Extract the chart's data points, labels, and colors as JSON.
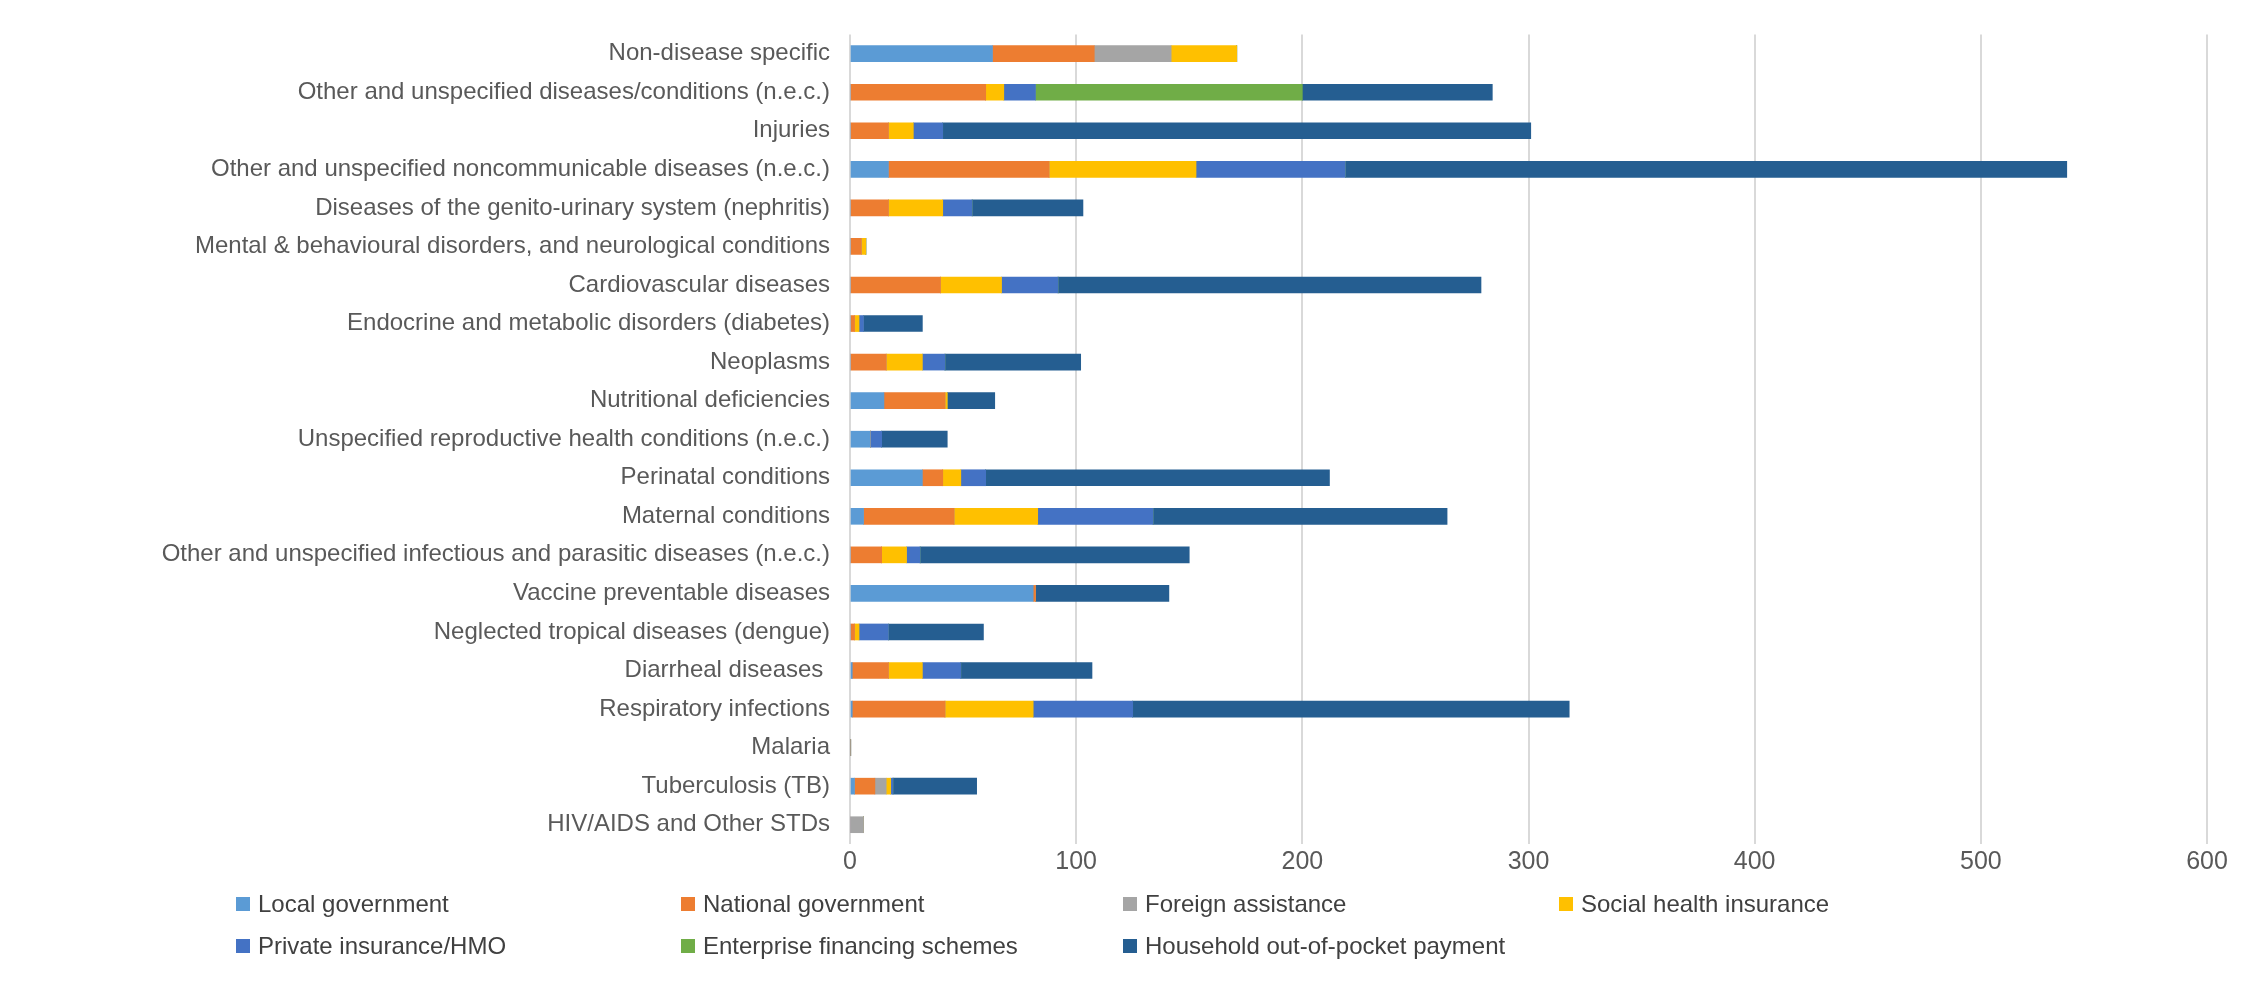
{
  "chart_data": {
    "type": "bar",
    "orientation": "horizontal",
    "stacked": true,
    "grid": "x",
    "legend": "bottom",
    "categories": [
      "Non-disease specific",
      "Other and unspecified diseases/conditions (n.e.c.)",
      "Injuries",
      "Other and unspecified noncommunicable diseases (n.e.c.)",
      "Diseases of the genito-urinary system (nephritis)",
      "Mental & behavioural disorders, and neurological conditions",
      "Cardiovascular diseases",
      "Endocrine and metabolic disorders (diabetes)",
      "Neoplasms",
      "Nutritional deficiencies",
      "Unspecified reproductive health conditions (n.e.c.)",
      "Perinatal conditions",
      "Maternal conditions",
      "Other and unspecified infectious and parasitic diseases (n.e.c.)",
      "Vaccine preventable diseases",
      "Neglected tropical diseases (dengue)",
      "Diarrheal diseases ",
      "Respiratory infections",
      "Malaria",
      "Tuberculosis (TB)",
      "HIV/AIDS and Other STDs"
    ],
    "xlim": [
      0,
      600
    ],
    "xticks": [
      0,
      100,
      200,
      300,
      400,
      500,
      600
    ],
    "series": [
      {
        "name": "Local government",
        "color": "#5b9bd5",
        "values": [
          63,
          0,
          0,
          17,
          0,
          0,
          0,
          0,
          0,
          15,
          9,
          32,
          6,
          0,
          81,
          0,
          1,
          1,
          0,
          2,
          0
        ]
      },
      {
        "name": "National government",
        "color": "#ed7d31",
        "values": [
          45,
          60,
          17,
          71,
          17,
          5,
          40,
          2,
          16,
          27,
          0,
          9,
          40,
          14,
          1,
          2,
          16,
          41,
          0,
          9,
          0
        ]
      },
      {
        "name": "Foreign assistance",
        "color": "#a5a5a5",
        "values": [
          34,
          0,
          0,
          0,
          0,
          0,
          0,
          0,
          0,
          0,
          0,
          0,
          0,
          0,
          0,
          0,
          0,
          0,
          0.3,
          5,
          6
        ]
      },
      {
        "name": "Social health insurance",
        "color": "#ffc000",
        "values": [
          29,
          8,
          11,
          65,
          24,
          2,
          27,
          2,
          16,
          1,
          0,
          8,
          37,
          11,
          0,
          2,
          15,
          39,
          0,
          2,
          0
        ]
      },
      {
        "name": "Private insurance/HMO",
        "color": "#4472c4",
        "values": [
          0,
          14,
          13,
          66,
          13,
          0,
          25,
          2,
          10,
          0,
          5,
          11,
          51,
          6,
          0,
          13,
          17,
          44,
          0,
          1,
          0
        ]
      },
      {
        "name": "Enterprise financing schemes",
        "color": "#70ad47",
        "values": [
          0,
          118,
          0,
          0,
          0,
          0,
          0,
          0,
          0,
          0,
          0,
          0,
          0,
          0,
          0,
          0,
          0,
          0,
          0,
          0,
          0
        ]
      },
      {
        "name": "Household out-of-pocket payment",
        "color": "#255e91",
        "values": [
          0,
          84,
          260,
          319,
          49,
          0,
          187,
          26,
          60,
          21,
          29,
          152,
          130,
          119,
          59,
          42,
          58,
          193,
          0,
          37,
          0
        ]
      }
    ]
  }
}
